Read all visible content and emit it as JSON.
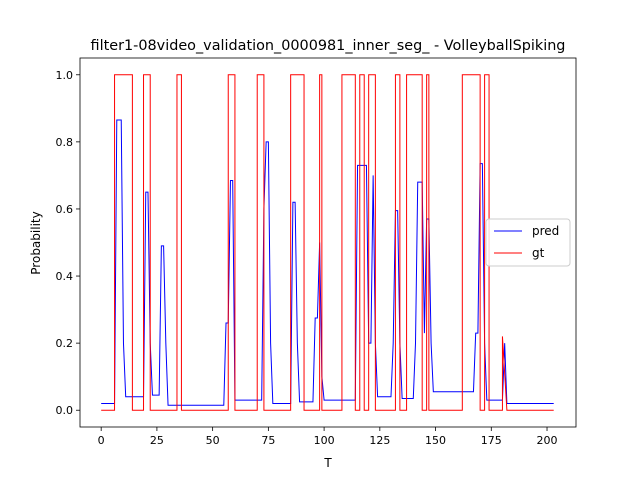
{
  "chart_data": {
    "type": "line",
    "title": "filter1-08video_validation_0000981_inner_seg_ - VolleyballSpiking",
    "xlabel": "T",
    "ylabel": "Probability",
    "xlim": [
      -9.5,
      213
    ],
    "ylim": [
      -0.05,
      1.05
    ],
    "xticks": [
      0,
      25,
      50,
      75,
      100,
      125,
      150,
      175,
      200
    ],
    "yticks": [
      0.0,
      0.2,
      0.4,
      0.6,
      0.8,
      1.0
    ],
    "xtick_labels": [
      "0",
      "25",
      "50",
      "75",
      "100",
      "125",
      "150",
      "175",
      "200"
    ],
    "ytick_labels": [
      "0.0",
      "0.2",
      "0.4",
      "0.6",
      "0.8",
      "1.0"
    ],
    "legend_position": "center-right",
    "grid": false,
    "series": [
      {
        "name": "pred",
        "color": "#0000ff",
        "x": [
          0,
          6,
          7,
          8,
          9,
          10,
          11,
          19,
          20,
          21,
          22,
          23,
          26,
          27,
          28,
          29,
          30,
          55,
          56,
          57,
          58,
          59,
          60,
          72,
          73,
          74,
          75,
          76,
          77,
          78,
          85,
          86,
          87,
          88,
          89,
          90,
          95,
          96,
          97,
          98,
          99,
          100,
          101,
          114,
          115,
          116,
          117,
          118,
          119,
          120,
          121,
          122,
          123,
          124,
          125,
          126,
          130,
          131,
          132,
          133,
          134,
          135,
          140,
          141,
          142,
          143,
          144,
          145,
          146,
          147,
          148,
          149,
          150,
          165,
          166,
          167,
          168,
          169,
          170,
          171,
          172,
          173,
          174,
          175,
          180,
          181,
          182,
          203
        ],
        "y": [
          0.02,
          0.02,
          0.865,
          0.865,
          0.865,
          0.2,
          0.04,
          0.04,
          0.65,
          0.65,
          0.2,
          0.045,
          0.045,
          0.49,
          0.49,
          0.2,
          0.015,
          0.015,
          0.26,
          0.26,
          0.685,
          0.685,
          0.03,
          0.03,
          0.6,
          0.8,
          0.8,
          0.2,
          0.02,
          0.02,
          0.02,
          0.62,
          0.62,
          0.2,
          0.025,
          0.025,
          0.025,
          0.275,
          0.275,
          0.5,
          0.1,
          0.03,
          0.03,
          0.03,
          0.73,
          0.73,
          0.73,
          0.73,
          0.73,
          0.2,
          0.2,
          0.7,
          0.2,
          0.04,
          0.04,
          0.04,
          0.04,
          0.2,
          0.595,
          0.595,
          0.2,
          0.035,
          0.035,
          0.2,
          0.68,
          0.68,
          0.68,
          0.23,
          0.57,
          0.57,
          0.2,
          0.055,
          0.055,
          0.055,
          0.055,
          0.055,
          0.23,
          0.23,
          0.735,
          0.735,
          0.2,
          0.03,
          0.03,
          0.03,
          0.03,
          0.2,
          0.02,
          0.02
        ]
      },
      {
        "name": "gt",
        "color": "#ff0000",
        "x": [
          0,
          6,
          6,
          14,
          14,
          19,
          19,
          22,
          22,
          34,
          34,
          36,
          36,
          57,
          57,
          60,
          60,
          70,
          70,
          73,
          73,
          85,
          85,
          91,
          91,
          98,
          98,
          99,
          99,
          108,
          108,
          114,
          114,
          116,
          116,
          118,
          118,
          120,
          120,
          123,
          123,
          125,
          125,
          132,
          132,
          134,
          134,
          137,
          137,
          144,
          144,
          146,
          146,
          147,
          147,
          148,
          148,
          162,
          162,
          170,
          170,
          172,
          172,
          174,
          174,
          180,
          180,
          182,
          182,
          203
        ],
        "y": [
          0,
          0,
          1,
          1,
          0,
          0,
          1,
          1,
          0,
          0,
          1,
          1,
          0,
          0,
          1,
          1,
          0,
          0,
          1,
          1,
          0,
          0,
          1,
          1,
          0,
          0,
          1,
          1,
          0,
          0,
          1,
          1,
          0,
          0,
          1,
          1,
          0,
          0,
          1,
          1,
          0,
          0,
          0,
          0,
          1,
          1,
          0,
          0,
          1,
          1,
          0,
          0,
          1,
          1,
          0,
          0,
          0,
          0,
          1,
          1,
          0,
          0,
          1,
          1,
          0,
          0,
          0.22,
          0,
          0,
          0
        ]
      }
    ]
  }
}
